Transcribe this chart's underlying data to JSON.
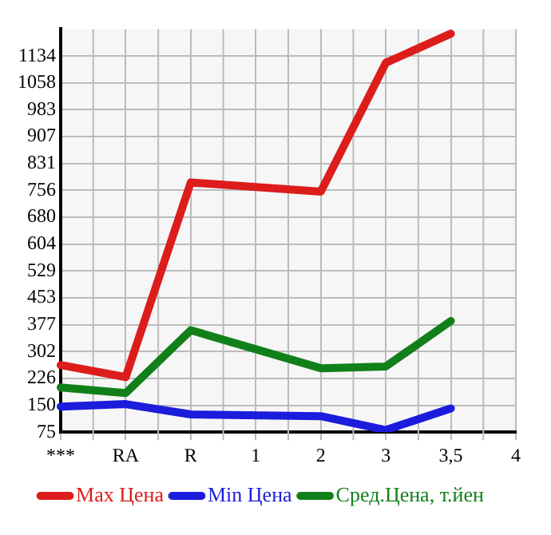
{
  "chart_data": {
    "type": "line",
    "categories": [
      "***",
      "RA",
      "R",
      "1",
      "2",
      "3",
      "3,5",
      "4"
    ],
    "series": [
      {
        "name": "Max Цена",
        "color": "#dd1c1c",
        "values": [
          264,
          230,
          778,
          null,
          752,
          1115,
          1197,
          null
        ]
      },
      {
        "name": "Min Цена",
        "color": "#1c1cdd",
        "values": [
          147,
          154,
          125,
          null,
          120,
          81,
          142,
          null
        ]
      },
      {
        "name": "Сред.Цена, т.йен",
        "color": "#11801a",
        "values": [
          201,
          185,
          362,
          null,
          255,
          260,
          388,
          null
        ]
      }
    ],
    "ylim": [
      75,
      1210
    ],
    "yticks": [
      75,
      150,
      226,
      302,
      377,
      453,
      529,
      604,
      680,
      756,
      831,
      907,
      983,
      1058,
      1134
    ],
    "grid": true,
    "legend": "bottom",
    "marker": "none",
    "line_style": "solid"
  }
}
